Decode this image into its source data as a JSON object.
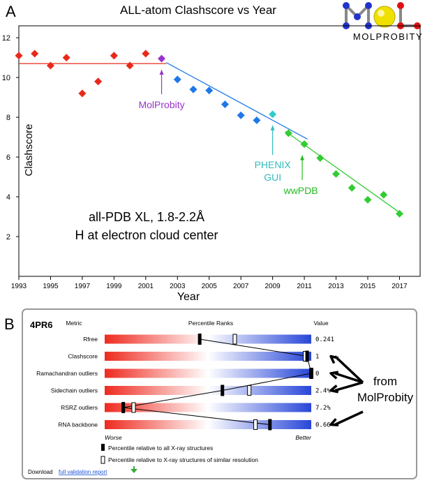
{
  "panel_a": {
    "letter": "A",
    "logo": {
      "text": "MOLPROBITY"
    }
  },
  "panel_b": {
    "letter": "B",
    "entry_id": "4PR6",
    "col_metric": "Metric",
    "col_percentile": "Percentile Ranks",
    "col_value": "Value",
    "worse_label": "Worse",
    "better_label": "Better",
    "legend_all": "Percentile relative to all X-ray structures",
    "legend_similar": "Percentile relative to X-ray structures of similar resolution",
    "download_prefix": "Download",
    "download_link": "full validation report",
    "from_label_line1": "from",
    "from_label_line2": "MolProbity",
    "bar_colors": {
      "worse": "#ee2a1f",
      "mid": "#ffffff",
      "better": "#2846d8"
    },
    "rows": [
      {
        "metric": "Rfree",
        "all": 46,
        "similar": 63,
        "value": "0.241",
        "from_molprobity": false
      },
      {
        "metric": "Clashscore",
        "all": 98,
        "similar": 97,
        "value": "1",
        "from_molprobity": true
      },
      {
        "metric": "Ramachandran outliers",
        "all": 100,
        "similar": 100,
        "value": "0",
        "from_molprobity": true
      },
      {
        "metric": "Sidechain outliers",
        "all": 57,
        "similar": 70,
        "value": "2.4%",
        "from_molprobity": true
      },
      {
        "metric": "RSRZ outliers",
        "all": 9,
        "similar": 14,
        "value": "7.2%",
        "from_molprobity": false
      },
      {
        "metric": "RNA backbone",
        "all": 80,
        "similar": 73,
        "value": "0.66",
        "from_molprobity": true
      }
    ]
  },
  "chart_data": {
    "type": "scatter",
    "title": "ALL-atom Clashscore vs Year",
    "xlabel": "Year",
    "ylabel": "Clashscore",
    "xlim": [
      1993,
      2018.3
    ],
    "ylim": [
      0,
      12.6
    ],
    "x_ticks": [
      1993,
      1995,
      1997,
      1999,
      2001,
      2003,
      2005,
      2007,
      2009,
      2011,
      2013,
      2015,
      2017
    ],
    "y_ticks": [
      2,
      4,
      6,
      8,
      10,
      12
    ],
    "grid": false,
    "annotation": {
      "line1": "all-PDB XL, 1.8-2.2Å",
      "line2": "H at electron cloud center"
    },
    "series": [
      {
        "color": "#e82a1a",
        "points": [
          [
            1993,
            11.1
          ],
          [
            1994,
            11.2
          ],
          [
            1995,
            10.6
          ],
          [
            1996,
            11.0
          ],
          [
            1997,
            9.2
          ],
          [
            1998,
            9.8
          ],
          [
            1999,
            11.1
          ],
          [
            2000,
            10.6
          ],
          [
            2001,
            11.2
          ]
        ]
      },
      {
        "color": "#9933cc",
        "points": [
          [
            2002,
            10.95
          ]
        ]
      },
      {
        "color": "#1e78e8",
        "points": [
          [
            2003,
            9.9
          ],
          [
            2004,
            9.4
          ],
          [
            2005,
            9.35
          ],
          [
            2006,
            8.65
          ],
          [
            2007,
            8.1
          ],
          [
            2008,
            7.85
          ]
        ]
      },
      {
        "color": "#33cccc",
        "points": [
          [
            2009,
            8.15
          ]
        ]
      },
      {
        "color": "#33cc33",
        "points": [
          [
            2010,
            7.2
          ],
          [
            2011,
            6.65
          ],
          [
            2012,
            5.95
          ],
          [
            2013,
            5.15
          ],
          [
            2014,
            4.45
          ],
          [
            2015,
            3.85
          ],
          [
            2016,
            4.1
          ],
          [
            2017,
            3.15
          ]
        ]
      }
    ],
    "trend_lines": [
      {
        "color": "#e82a1a",
        "from": [
          1993,
          10.7
        ],
        "to": [
          2002.3,
          10.7
        ]
      },
      {
        "color": "#1e78e8",
        "from": [
          2002.3,
          10.75
        ],
        "to": [
          2011.2,
          6.9
        ]
      },
      {
        "color": "#33cc33",
        "from": [
          2009.8,
          7.3
        ],
        "to": [
          2017.2,
          3.1
        ]
      }
    ],
    "callouts": [
      {
        "label": "MolProbity",
        "color": "#9933cc",
        "point": [
          2002,
          10.95
        ]
      },
      {
        "label1": "PHENIX",
        "label2": "GUI",
        "color": "#33bbbb",
        "point": [
          2009,
          8.15
        ]
      },
      {
        "label": "wwPDB",
        "color": "#22bb22",
        "point": [
          2011,
          6.65
        ]
      }
    ]
  }
}
